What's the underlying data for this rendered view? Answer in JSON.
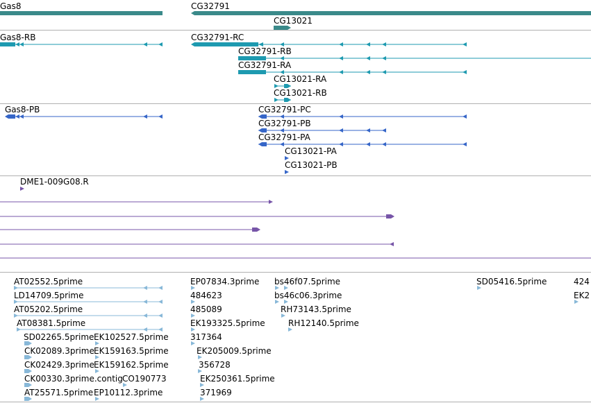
{
  "colors": {
    "gene": "#3a8a8a",
    "transcript_rna": "#1e9ab0",
    "transcript_protein": "#3666c8",
    "probe": "#7755a8",
    "est": "#88b8d8",
    "separator": "#b0b0b0"
  },
  "tracks": {
    "genes": [
      {
        "name": "Gas8"
      },
      {
        "name": "CG32791"
      },
      {
        "name": "CG13021"
      }
    ],
    "rna_transcripts": [
      {
        "name": "Gas8-RB"
      },
      {
        "name": "CG32791-RC"
      },
      {
        "name": "CG32791-RB"
      },
      {
        "name": "CG32791-RA"
      },
      {
        "name": "CG13021-RA"
      },
      {
        "name": "CG13021-RB"
      }
    ],
    "protein_transcripts": [
      {
        "name": "Gas8-PB"
      },
      {
        "name": "CG32791-PC"
      },
      {
        "name": "CG32791-PB"
      },
      {
        "name": "CG32791-PA"
      },
      {
        "name": "CG13021-PA"
      },
      {
        "name": "CG13021-PB"
      }
    ],
    "probes": [
      {
        "name": "DME1-009G08.R"
      }
    ],
    "ests": [
      {
        "name": "AT02552.5prime"
      },
      {
        "name": "LD14709.5prime"
      },
      {
        "name": "AT05202.5prime"
      },
      {
        "name": "AT08381.5prime"
      },
      {
        "name": "SD02265.5prime"
      },
      {
        "name": "CK02089.3prime"
      },
      {
        "name": "CK02429.3prime"
      },
      {
        "name": "CK00330.3prime.contig"
      },
      {
        "name": "AT25571.5prime"
      },
      {
        "name": "EK102527.5prime"
      },
      {
        "name": "EK159163.5prime"
      },
      {
        "name": "EK159162.5prime"
      },
      {
        "name": "CO190773"
      },
      {
        "name": "EP10112.3prime"
      },
      {
        "name": "EP07834.3prime"
      },
      {
        "name": "484623"
      },
      {
        "name": "485089"
      },
      {
        "name": "EK193325.5prime"
      },
      {
        "name": "317364"
      },
      {
        "name": "EK205009.5prime"
      },
      {
        "name": "356728"
      },
      {
        "name": "EK250361.5prime"
      },
      {
        "name": "371969"
      },
      {
        "name": "bs46f07.5prime"
      },
      {
        "name": "bs46c06.3prime"
      },
      {
        "name": "RH73143.5prime"
      },
      {
        "name": "RH12140.5prime"
      },
      {
        "name": "SD05416.5prime"
      },
      {
        "name": "424"
      },
      {
        "name": "EK2"
      }
    ]
  }
}
